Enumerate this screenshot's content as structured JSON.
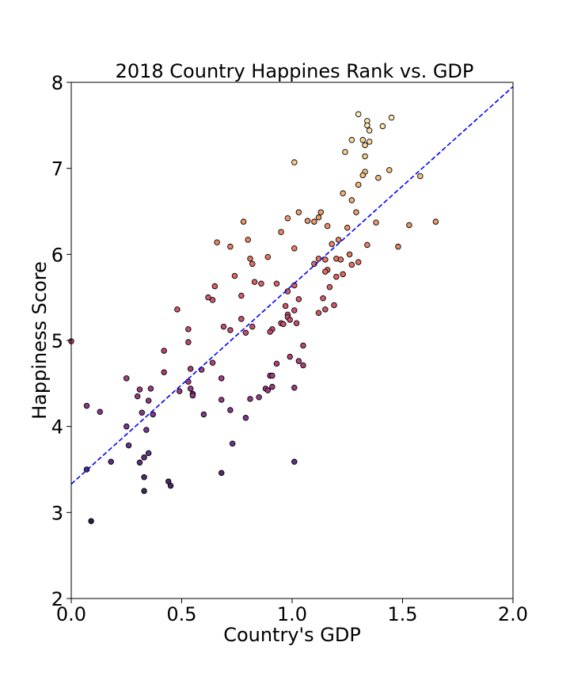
{
  "chart_data": {
    "type": "scatter",
    "title": "2018 Country Happines Rank vs. GDP",
    "xlabel": "Country's GDP",
    "ylabel": "Happiness Score",
    "xlim": [
      0,
      2.0
    ],
    "ylim": [
      2,
      8
    ],
    "xticks": [
      "0.0",
      "0.5",
      "1.0",
      "1.5",
      "2.0"
    ],
    "yticks": [
      "2",
      "3",
      "4",
      "5",
      "6",
      "7",
      "8"
    ],
    "grid": false,
    "regression_line": {
      "slope": 2.31,
      "intercept": 3.33,
      "style": "dashed",
      "color": "#0000ff"
    },
    "colormap": [
      "#2a1f45",
      "#6a3790",
      "#b2407a",
      "#e06660",
      "#f4b06e",
      "#fff0b8"
    ],
    "points": [
      [
        1.3,
        7.63
      ],
      [
        1.45,
        7.59
      ],
      [
        1.34,
        7.55
      ],
      [
        1.35,
        7.44
      ],
      [
        1.34,
        7.5
      ],
      [
        1.41,
        7.49
      ],
      [
        1.27,
        7.33
      ],
      [
        1.32,
        7.33
      ],
      [
        1.35,
        7.31
      ],
      [
        1.33,
        7.27
      ],
      [
        1.24,
        7.19
      ],
      [
        1.33,
        7.14
      ],
      [
        1.01,
        7.07
      ],
      [
        1.44,
        6.98
      ],
      [
        1.33,
        6.96
      ],
      [
        1.32,
        6.92
      ],
      [
        1.39,
        6.89
      ],
      [
        1.58,
        6.91
      ],
      [
        1.3,
        6.81
      ],
      [
        1.23,
        6.71
      ],
      [
        1.27,
        6.63
      ],
      [
        1.03,
        6.49
      ],
      [
        1.13,
        6.49
      ],
      [
        1.29,
        6.49
      ],
      [
        0.98,
        6.42
      ],
      [
        1.12,
        6.43
      ],
      [
        1.07,
        6.39
      ],
      [
        1.1,
        6.38
      ],
      [
        0.78,
        6.38
      ],
      [
        1.38,
        6.37
      ],
      [
        1.65,
        6.38
      ],
      [
        1.53,
        6.34
      ],
      [
        1.16,
        6.33
      ],
      [
        1.25,
        6.31
      ],
      [
        0.95,
        6.26
      ],
      [
        0.8,
        6.17
      ],
      [
        1.21,
        6.17
      ],
      [
        0.66,
        6.14
      ],
      [
        1.18,
        6.12
      ],
      [
        1.34,
        6.11
      ],
      [
        0.72,
        6.09
      ],
      [
        1.48,
        6.09
      ],
      [
        1.01,
        6.07
      ],
      [
        1.26,
        6.0
      ],
      [
        0.89,
        5.97
      ],
      [
        0.81,
        5.95
      ],
      [
        1.12,
        5.95
      ],
      [
        1.2,
        5.95
      ],
      [
        1.22,
        5.94
      ],
      [
        1.15,
        5.94
      ],
      [
        1.3,
        5.91
      ],
      [
        0.82,
        5.89
      ],
      [
        1.1,
        5.89
      ],
      [
        1.27,
        5.88
      ],
      [
        1.16,
        5.82
      ],
      [
        1.15,
        5.8
      ],
      [
        1.23,
        5.77
      ],
      [
        0.74,
        5.75
      ],
      [
        1.2,
        5.74
      ],
      [
        0.83,
        5.68
      ],
      [
        0.86,
        5.66
      ],
      [
        0.93,
        5.66
      ],
      [
        1.01,
        5.64
      ],
      [
        0.65,
        5.63
      ],
      [
        1.17,
        5.62
      ],
      [
        0.98,
        5.57
      ],
      [
        0.77,
        5.52
      ],
      [
        0.62,
        5.5
      ],
      [
        1.14,
        5.49
      ],
      [
        1.03,
        5.48
      ],
      [
        0.64,
        5.47
      ],
      [
        0.97,
        5.4
      ],
      [
        1.19,
        5.41
      ],
      [
        0.48,
        5.36
      ],
      [
        1.01,
        5.35
      ],
      [
        1.15,
        5.36
      ],
      [
        1.12,
        5.32
      ],
      [
        0.98,
        5.3
      ],
      [
        0.98,
        5.27
      ],
      [
        0.77,
        5.25
      ],
      [
        0.99,
        5.24
      ],
      [
        0.95,
        5.2
      ],
      [
        1.02,
        5.2
      ],
      [
        0.96,
        5.19
      ],
      [
        0.82,
        5.16
      ],
      [
        0.69,
        5.16
      ],
      [
        0.53,
        5.13
      ],
      [
        0.91,
        5.13
      ],
      [
        0.72,
        5.12
      ],
      [
        0.9,
        5.1
      ],
      [
        0.79,
        5.09
      ],
      [
        0.0,
        4.99
      ],
      [
        0.53,
        4.98
      ],
      [
        1.05,
        4.94
      ],
      [
        0.42,
        4.88
      ],
      [
        0.99,
        4.81
      ],
      [
        0.64,
        4.74
      ],
      [
        1.03,
        4.76
      ],
      [
        0.93,
        4.73
      ],
      [
        1.05,
        4.71
      ],
      [
        0.54,
        4.67
      ],
      [
        0.59,
        4.66
      ],
      [
        0.42,
        4.63
      ],
      [
        0.9,
        4.59
      ],
      [
        0.91,
        4.59
      ],
      [
        0.25,
        4.56
      ],
      [
        0.68,
        4.56
      ],
      [
        0.53,
        4.52
      ],
      [
        0.91,
        4.46
      ],
      [
        1.01,
        4.45
      ],
      [
        0.31,
        4.43
      ],
      [
        0.36,
        4.44
      ],
      [
        0.88,
        4.44
      ],
      [
        0.54,
        4.44
      ],
      [
        0.89,
        4.42
      ],
      [
        0.49,
        4.41
      ],
      [
        0.55,
        4.38
      ],
      [
        0.55,
        4.36
      ],
      [
        0.3,
        4.35
      ],
      [
        0.85,
        4.34
      ],
      [
        0.81,
        4.32
      ],
      [
        0.35,
        4.3
      ],
      [
        0.68,
        4.31
      ],
      [
        0.07,
        4.24
      ],
      [
        0.72,
        4.19
      ],
      [
        0.13,
        4.17
      ],
      [
        0.32,
        4.16
      ],
      [
        0.37,
        4.14
      ],
      [
        0.6,
        4.14
      ],
      [
        0.79,
        4.1
      ],
      [
        0.25,
        4.0
      ],
      [
        0.34,
        3.96
      ],
      [
        0.73,
        3.8
      ],
      [
        0.26,
        3.78
      ],
      [
        0.35,
        3.69
      ],
      [
        0.33,
        3.64
      ],
      [
        0.18,
        3.59
      ],
      [
        0.31,
        3.58
      ],
      [
        1.01,
        3.59
      ],
      [
        0.07,
        3.5
      ],
      [
        0.68,
        3.46
      ],
      [
        0.33,
        3.41
      ],
      [
        0.44,
        3.36
      ],
      [
        0.45,
        3.31
      ],
      [
        0.33,
        3.25
      ],
      [
        0.09,
        2.9
      ]
    ]
  }
}
